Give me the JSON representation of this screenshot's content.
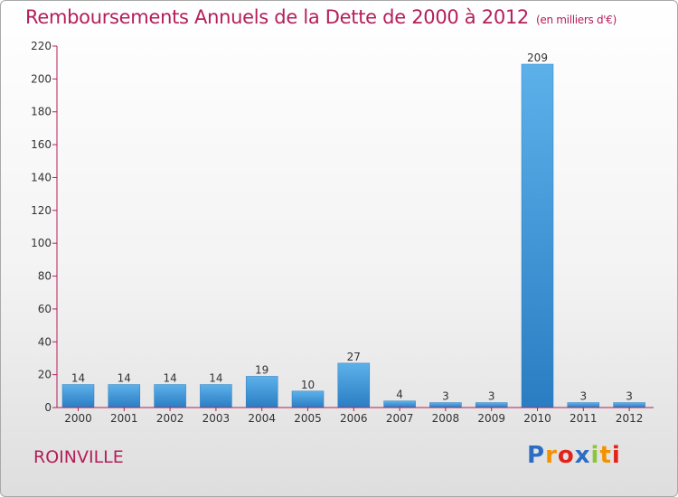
{
  "header": {
    "title": "Remboursements Annuels de la Dette de 2000 à 2012",
    "subtitle": "(en milliers d'€)"
  },
  "footer": {
    "commune": "ROINVILLE",
    "brand": {
      "letters": [
        "P",
        "r",
        "o",
        "x",
        "i",
        "t",
        "i"
      ],
      "colors": [
        "#2b6cc4",
        "#f39200",
        "#e2231a",
        "#2b6cc4",
        "#8cc63f",
        "#f39200",
        "#e2231a"
      ]
    }
  },
  "chart_data": {
    "type": "bar",
    "title": "Remboursements Annuels de la Dette de 2000 à 2012",
    "subtitle": "(en milliers d'€)",
    "categories": [
      "2000",
      "2001",
      "2002",
      "2003",
      "2004",
      "2005",
      "2006",
      "2007",
      "2008",
      "2009",
      "2010",
      "2011",
      "2012"
    ],
    "values": [
      14,
      14,
      14,
      14,
      19,
      10,
      27,
      4,
      3,
      3,
      209,
      3,
      3
    ],
    "ylim": [
      0,
      220
    ],
    "yticks": [
      0,
      20,
      40,
      60,
      80,
      100,
      120,
      140,
      160,
      180,
      200,
      220
    ],
    "grid": false,
    "bar_color": "#3f96d8",
    "axis_color": "#b41e5a"
  }
}
